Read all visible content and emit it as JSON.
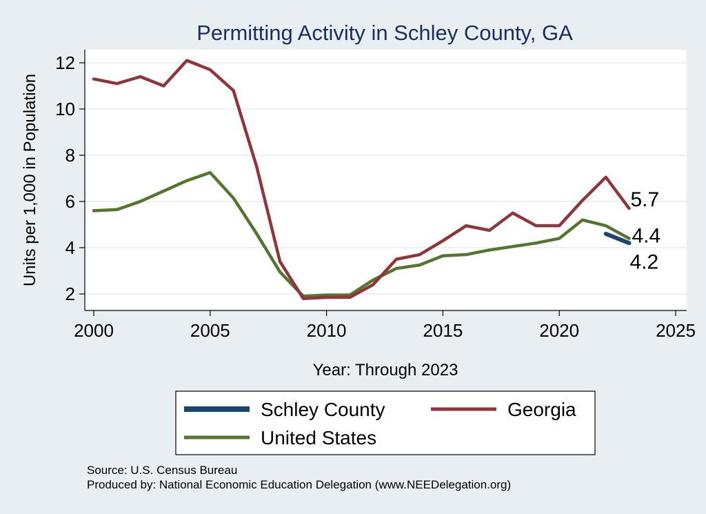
{
  "chart_data": {
    "type": "line",
    "title": "Permitting Activity in Schley County, GA",
    "xlabel": "Year: Through 2023",
    "ylabel": "Units per 1,000 in Population",
    "xlim": [
      2000,
      2025
    ],
    "ylim": [
      1.5,
      12.6
    ],
    "x_ticks": [
      2000,
      2005,
      2010,
      2015,
      2020,
      2025
    ],
    "y_ticks": [
      2,
      4,
      6,
      8,
      10,
      12
    ],
    "grid": "horizontal",
    "legend_position": "bottom",
    "series": [
      {
        "name": "Schley County",
        "color": "#1a476f",
        "x": [
          2022,
          2023
        ],
        "values": [
          4.6,
          4.2
        ],
        "end_label": "4.2"
      },
      {
        "name": "Georgia",
        "color": "#90353b",
        "x": [
          2000,
          2001,
          2002,
          2003,
          2004,
          2005,
          2006,
          2007,
          2008,
          2009,
          2010,
          2011,
          2012,
          2013,
          2014,
          2015,
          2016,
          2017,
          2018,
          2019,
          2020,
          2021,
          2022,
          2023
        ],
        "values": [
          11.3,
          11.1,
          11.4,
          11.0,
          12.1,
          11.7,
          10.8,
          7.5,
          3.4,
          1.8,
          1.85,
          1.85,
          2.4,
          3.5,
          3.7,
          4.3,
          4.95,
          4.75,
          5.5,
          4.95,
          4.95,
          6.05,
          7.05,
          5.7
        ],
        "end_label": "5.7"
      },
      {
        "name": "United States",
        "color": "#55752f",
        "x": [
          2000,
          2001,
          2002,
          2003,
          2004,
          2005,
          2006,
          2007,
          2008,
          2009,
          2010,
          2011,
          2012,
          2013,
          2014,
          2015,
          2016,
          2017,
          2018,
          2019,
          2020,
          2021,
          2022,
          2023
        ],
        "values": [
          5.6,
          5.65,
          6.0,
          6.45,
          6.9,
          7.25,
          6.15,
          4.6,
          2.95,
          1.9,
          1.95,
          1.95,
          2.6,
          3.1,
          3.25,
          3.65,
          3.7,
          3.9,
          4.05,
          4.2,
          4.4,
          5.2,
          4.95,
          4.4
        ],
        "end_label": "4.4"
      }
    ]
  },
  "notes": {
    "source": "Source: U.S. Census Bureau",
    "produced_by": "Produced by: National Economic Education Delegation (www.NEEDelegation.org)"
  }
}
